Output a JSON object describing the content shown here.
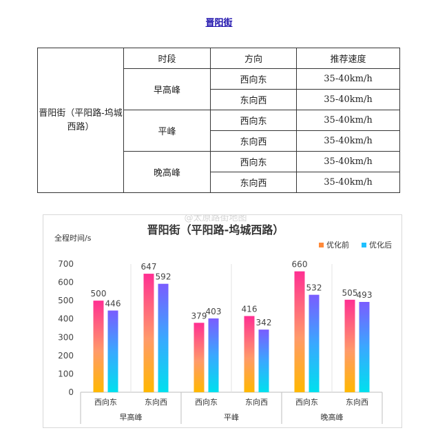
{
  "page": {
    "link_text": "晋阳街"
  },
  "table": {
    "headers": [
      "时段",
      "方向",
      "推荐速度"
    ],
    "road": "晋阳街（平阳路-坞城西路）",
    "groups": [
      {
        "period": "早高峰",
        "rows": [
          {
            "direction": "西向东",
            "speed": "35-40km/h"
          },
          {
            "direction": "东向西",
            "speed": "35-40km/h"
          }
        ]
      },
      {
        "period": "平峰",
        "rows": [
          {
            "direction": "西向东",
            "speed": "35-40km/h"
          },
          {
            "direction": "东向西",
            "speed": "35-40km/h"
          }
        ]
      },
      {
        "period": "晚高峰",
        "rows": [
          {
            "direction": "西向东",
            "speed": "35-40km/h"
          },
          {
            "direction": "东向西",
            "speed": "35-40km/h"
          }
        ]
      }
    ]
  },
  "chart_data": {
    "type": "bar",
    "title": "晋阳街（平阳路-坞城西路）",
    "ylabel": "全程时间/s",
    "ylim": [
      0,
      700
    ],
    "yticks": [
      0,
      100,
      200,
      300,
      400,
      500,
      600,
      700
    ],
    "categories": [
      "西向东",
      "东向西",
      "西向东",
      "东向西",
      "西向东",
      "东向西"
    ],
    "groups": [
      "早高峰",
      "平峰",
      "晚高峰"
    ],
    "series": [
      {
        "name": "优化前",
        "values": [
          500,
          647,
          379,
          416,
          660,
          505
        ],
        "colors": [
          "#ff2f92",
          "#ffb800"
        ]
      },
      {
        "name": "优化后",
        "values": [
          446,
          592,
          403,
          342,
          532,
          493
        ],
        "colors": [
          "#7a5cff",
          "#00e0ee"
        ]
      }
    ],
    "legend": "top-right",
    "grid": false,
    "watermark": "@太原路街地图"
  }
}
